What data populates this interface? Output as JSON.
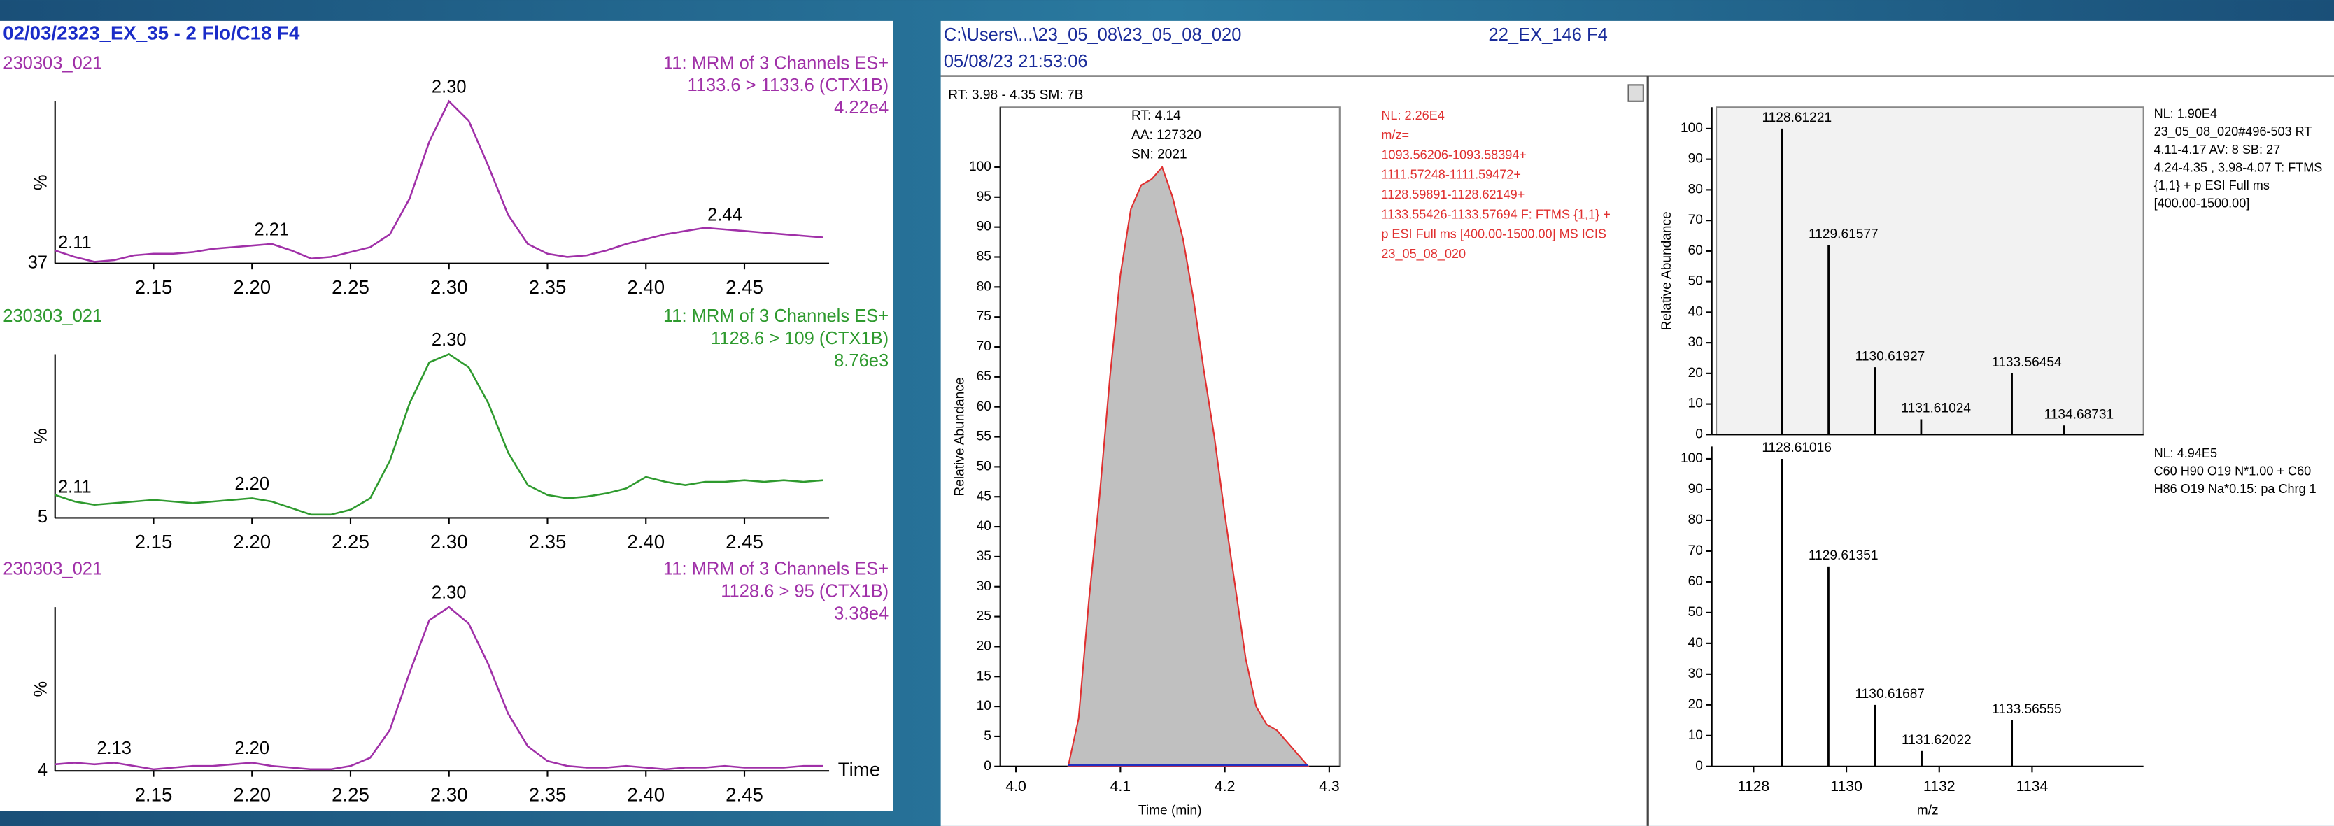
{
  "header": {
    "left_title": "02/03/2323_EX_35 - 2 Flo/C18 F4",
    "file_path": "C:\\Users\\...\\23_05_08\\23_05_08_020",
    "sample_id": "22_EX_146 F4",
    "timestamp": "05/08/23 21:53:06"
  },
  "chart_data": [
    {
      "type": "line",
      "sample": "230303_021",
      "scan": "11: MRM of 3 Channels ES+",
      "transition": "1133.6 > 1133.6 (CTX1B)",
      "intensity": "4.22e4",
      "y_label": "%",
      "y_offset": 37,
      "color": "#a030a8",
      "x": [
        2.1,
        2.11,
        2.12,
        2.13,
        2.14,
        2.15,
        2.16,
        2.17,
        2.18,
        2.19,
        2.2,
        2.21,
        2.22,
        2.23,
        2.24,
        2.25,
        2.26,
        2.27,
        2.28,
        2.29,
        2.3,
        2.31,
        2.32,
        2.33,
        2.34,
        2.35,
        2.36,
        2.37,
        2.38,
        2.39,
        2.4,
        2.41,
        2.42,
        2.43,
        2.44,
        2.45,
        2.46,
        2.47,
        2.48,
        2.49
      ],
      "values": [
        8,
        4,
        1,
        2,
        5,
        6,
        6,
        7,
        9,
        10,
        11,
        12,
        8,
        3,
        4,
        7,
        10,
        18,
        40,
        75,
        100,
        88,
        60,
        30,
        12,
        6,
        4,
        5,
        8,
        12,
        15,
        18,
        20,
        22,
        21,
        20,
        19,
        18,
        17,
        16
      ],
      "xlim": [
        2.1,
        2.493
      ],
      "ylim": [
        0,
        100
      ],
      "xticks": [
        2.15,
        {
          "value": 2.2,
          "label": "2.20"
        },
        2.25,
        {
          "value": 2.3,
          "label": "2.30"
        },
        2.35,
        {
          "value": 2.4,
          "label": "2.40"
        },
        2.45
      ],
      "peaks": [
        {
          "value": 2.11,
          "label": "2.11"
        },
        {
          "value": 2.21,
          "label": "2.21"
        },
        {
          "value": 2.3,
          "label": "2.30"
        },
        {
          "value": 2.44,
          "label": "2.44"
        }
      ]
    },
    {
      "type": "line",
      "sample": "230303_021",
      "scan": "11: MRM of 3 Channels ES+",
      "transition": "1128.6 > 109 (CTX1B)",
      "intensity": "8.76e3",
      "y_label": "%",
      "y_offset": 5,
      "color": "#2e9a2e",
      "x": [
        2.1,
        2.11,
        2.12,
        2.13,
        2.14,
        2.15,
        2.16,
        2.17,
        2.18,
        2.19,
        2.2,
        2.21,
        2.22,
        2.23,
        2.24,
        2.25,
        2.26,
        2.27,
        2.28,
        2.29,
        2.3,
        2.31,
        2.32,
        2.33,
        2.34,
        2.35,
        2.36,
        2.37,
        2.38,
        2.39,
        2.4,
        2.41,
        2.42,
        2.43,
        2.44,
        2.45,
        2.46,
        2.47,
        2.48,
        2.49
      ],
      "values": [
        14,
        10,
        8,
        9,
        10,
        11,
        10,
        9,
        10,
        11,
        12,
        10,
        6,
        2,
        2,
        5,
        12,
        35,
        70,
        95,
        100,
        92,
        70,
        40,
        20,
        14,
        12,
        13,
        15,
        18,
        25,
        22,
        20,
        22,
        22,
        23,
        22,
        23,
        22,
        23
      ],
      "xlim": [
        2.1,
        2.493
      ],
      "ylim": [
        0,
        100
      ],
      "xticks": [
        2.15,
        {
          "value": 2.2,
          "label": "2.20"
        },
        2.25,
        {
          "value": 2.3,
          "label": "2.30"
        },
        2.35,
        {
          "value": 2.4,
          "label": "2.40"
        },
        2.45
      ],
      "peaks": [
        {
          "value": 2.11,
          "label": "2.11"
        },
        {
          "value": 2.2,
          "label": "2.20"
        },
        {
          "value": 2.3,
          "label": "2.30"
        }
      ]
    },
    {
      "type": "line",
      "sample": "230303_021",
      "scan": "11: MRM of 3 Channels ES+",
      "transition": "1128.6 > 95 (CTX1B)",
      "intensity": "3.38e4",
      "y_label": "%",
      "y_offset": 4,
      "x_label": "Time",
      "color": "#a030a8",
      "x": [
        2.1,
        2.11,
        2.12,
        2.13,
        2.14,
        2.15,
        2.16,
        2.17,
        2.18,
        2.19,
        2.2,
        2.21,
        2.22,
        2.23,
        2.24,
        2.25,
        2.26,
        2.27,
        2.28,
        2.29,
        2.3,
        2.31,
        2.32,
        2.33,
        2.34,
        2.35,
        2.36,
        2.37,
        2.38,
        2.39,
        2.4,
        2.41,
        2.42,
        2.43,
        2.44,
        2.45,
        2.46,
        2.47,
        2.48,
        2.49
      ],
      "values": [
        4,
        5,
        4,
        5,
        3,
        1,
        2,
        3,
        3,
        4,
        5,
        3,
        2,
        1,
        1,
        3,
        8,
        25,
        60,
        92,
        100,
        90,
        65,
        35,
        15,
        6,
        3,
        2,
        2,
        3,
        2,
        1,
        2,
        2,
        3,
        2,
        2,
        2,
        3,
        3
      ],
      "xlim": [
        2.1,
        2.493
      ],
      "ylim": [
        0,
        100
      ],
      "xticks": [
        2.15,
        {
          "value": 2.2,
          "label": "2.20"
        },
        2.25,
        {
          "value": 2.3,
          "label": "2.30"
        },
        2.35,
        {
          "value": 2.4,
          "label": "2.40"
        },
        2.45
      ],
      "peaks": [
        {
          "value": 2.13,
          "label": "2.13"
        },
        {
          "value": 2.2,
          "label": "2.20"
        },
        {
          "value": 2.3,
          "label": "2.30"
        }
      ]
    },
    {
      "type": "area",
      "range_info": "RT: 3.98 - 4.35  SM: 7B",
      "annotations": [
        "RT: 4.14",
        "AA: 127320",
        "SN: 2021"
      ],
      "nl_info": [
        "NL: 2.26E4",
        "m/z=",
        "1093.56206-1093.58394+",
        "1111.57248-1111.59472+",
        "1128.59891-1128.62149+",
        "1133.55426-1133.57694 F: FTMS {1,1} +",
        "p ESI Full ms [400.00-1500.00]  MS  ICIS",
        "23_05_08_020"
      ],
      "y_label": "Relative Abundance",
      "x_label": "Time (min)",
      "color": "#c0c0c0",
      "line_color": "#e03030",
      "x": [
        4.05,
        4.06,
        4.07,
        4.08,
        4.09,
        4.1,
        4.11,
        4.12,
        4.13,
        4.14,
        4.15,
        4.16,
        4.17,
        4.18,
        4.19,
        4.2,
        4.21,
        4.22,
        4.23,
        4.24,
        4.25,
        4.26,
        4.27,
        4.28
      ],
      "values": [
        0,
        8,
        28,
        45,
        65,
        82,
        93,
        97,
        98,
        100,
        95,
        88,
        78,
        66,
        55,
        42,
        30,
        18,
        10,
        7,
        6,
        4,
        2,
        0
      ],
      "xlim": [
        3.985,
        4.31
      ],
      "ylim": [
        0,
        110
      ],
      "xticks": [
        {
          "value": 4,
          "label": "4.0"
        },
        4.1,
        4.2,
        4.3
      ],
      "yticks": [
        0,
        5,
        10,
        15,
        20,
        25,
        30,
        35,
        40,
        45,
        50,
        55,
        60,
        65,
        70,
        75,
        80,
        85,
        90,
        95,
        100
      ]
    },
    {
      "type": "stem",
      "info": [
        "NL: 1.90E4",
        "23_05_08_020#496-503  RT",
        "4.11-4.17  AV: 8 SB: 27",
        "4.24-4.35 , 3.98-4.07  T: FTMS",
        "{1,1} + p ESI Full ms",
        "[400.00-1500.00]"
      ],
      "y_label": "Relative Abundance",
      "color": "#000000",
      "x": [
        1128.61221,
        1129.61577,
        1130.61927,
        1131.61024,
        1133.56454,
        1134.68731
      ],
      "values": [
        100,
        62,
        22,
        5,
        20,
        3
      ],
      "xlim": [
        1127.1,
        1136.4
      ],
      "ylim": [
        0,
        107
      ],
      "yticks": [
        0,
        10,
        20,
        30,
        40,
        50,
        60,
        70,
        80,
        90,
        100
      ]
    },
    {
      "type": "stem",
      "info": [
        "NL: 4.94E5",
        "C60 H90 O19 N*1.00 + C60",
        "H86 O19 Na*0.15:  pa Chrg 1"
      ],
      "x_label": "m/z",
      "color": "#000000",
      "x": [
        1128.61016,
        1129.61351,
        1130.61687,
        1131.62022,
        1133.56555
      ],
      "values": [
        100,
        65,
        20,
        5,
        15
      ],
      "xlim": [
        1127.1,
        1136.4
      ],
      "ylim": [
        0,
        104
      ],
      "yticks": [
        0,
        10,
        20,
        30,
        40,
        50,
        60,
        70,
        80,
        90,
        100
      ],
      "xticks": [
        1128,
        1130,
        1132,
        1134
      ]
    }
  ]
}
